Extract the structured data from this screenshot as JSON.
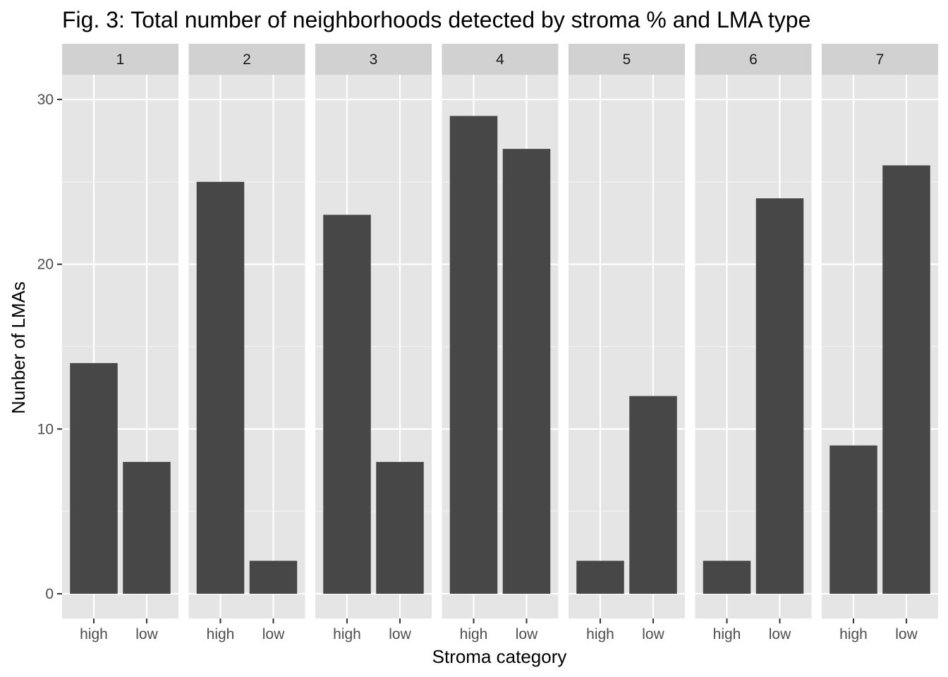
{
  "chart_data": {
    "type": "bar",
    "title": "Fig. 3: Total number of neighborhoods detected by stroma % and LMA type",
    "xlabel": "Stroma category",
    "ylabel": "Nunber of LMAs",
    "categories": [
      "high",
      "low"
    ],
    "ylim": [
      -1.5,
      31.5
    ],
    "yticks": [
      0,
      10,
      20,
      30
    ],
    "grid": true,
    "legend": "none",
    "bar_color": "#474747",
    "panel_color": "#e5e5e5",
    "strip_color": "#d1d1d1",
    "panels": [
      {
        "label": "1",
        "values": [
          14,
          8
        ]
      },
      {
        "label": "2",
        "values": [
          25,
          2
        ]
      },
      {
        "label": "3",
        "values": [
          23,
          8
        ]
      },
      {
        "label": "4",
        "values": [
          29,
          27
        ]
      },
      {
        "label": "5",
        "values": [
          2,
          12
        ]
      },
      {
        "label": "6",
        "values": [
          2,
          24
        ]
      },
      {
        "label": "7",
        "values": [
          9,
          26
        ]
      }
    ]
  }
}
